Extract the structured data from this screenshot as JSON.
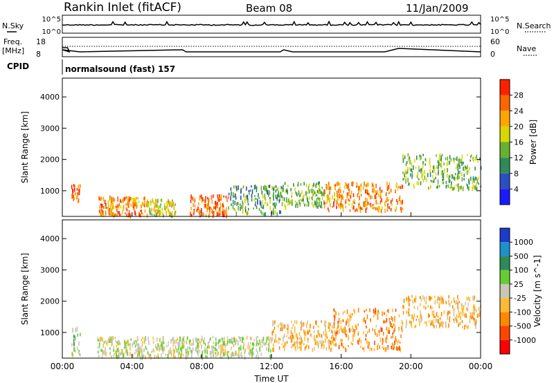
{
  "header": {
    "station": "Rankin Inlet (fitACF)",
    "beam": "Beam 08",
    "date": "11/Jan/2009"
  },
  "top_panel": {
    "left_label": "N.Sky",
    "right_label": "N.Search",
    "left_ticks": [
      "10^5",
      "10^0"
    ],
    "right_ticks": [
      "10^5",
      "10^0"
    ]
  },
  "freq_panel": {
    "left_label_1": "Freq.",
    "left_label_2": "[MHz]",
    "right_label": "Nave",
    "left_ticks": [
      "18",
      "8"
    ],
    "right_ticks": [
      "60",
      "0"
    ]
  },
  "cpid": {
    "label": "CPID",
    "value": "normalsound (fast) 157"
  },
  "colors": {
    "power": [
      "#1a1aff",
      "#2a4fbf",
      "#2e8b57",
      "#66b032",
      "#d8d800",
      "#ffa500",
      "#ff6600",
      "#ff2000"
    ],
    "velocity": [
      "#ff0000",
      "#ff4400",
      "#ff8800",
      "#ffbb33",
      "#c8c8b4",
      "#66cc33",
      "#2e8b57",
      "#1e90cc",
      "#1a3cc8"
    ]
  },
  "chart_data": [
    {
      "type": "heatmap",
      "title": "",
      "xlabel": "",
      "ylabel": "Slant Range [km]",
      "x_tick_labels": [
        "00:00",
        "04:00",
        "08:00",
        "12:00",
        "16:00",
        "20:00",
        "00:00"
      ],
      "y_ticks": [
        1000,
        2000,
        3000,
        4000
      ],
      "ylim": [
        180,
        4600
      ],
      "colorbar": {
        "label": "Power [dB]",
        "ticks": [
          4,
          8,
          12,
          16,
          20,
          24,
          28
        ],
        "range": [
          0,
          32
        ]
      },
      "regions": [
        {
          "t": [
            0.5,
            1.0
          ],
          "r": [
            700,
            1250
          ],
          "v": 26
        },
        {
          "t": [
            2.0,
            4.8
          ],
          "r": [
            250,
            850
          ],
          "v": 24
        },
        {
          "t": [
            4.8,
            6.5
          ],
          "r": [
            250,
            750
          ],
          "v": 18
        },
        {
          "t": [
            7.3,
            9.5
          ],
          "r": [
            250,
            900
          ],
          "v": 26
        },
        {
          "t": [
            9.5,
            12.5
          ],
          "r": [
            300,
            1200
          ],
          "v": 12
        },
        {
          "t": [
            12.5,
            15.0
          ],
          "r": [
            500,
            1300
          ],
          "v": 14
        },
        {
          "t": [
            15.0,
            19.5
          ],
          "r": [
            400,
            1300
          ],
          "v": 24
        },
        {
          "t": [
            19.5,
            24.0
          ],
          "r": [
            1100,
            2200
          ],
          "v": 14
        }
      ]
    },
    {
      "type": "heatmap",
      "title": "",
      "xlabel": "Time UT",
      "ylabel": "Slant Range [km]",
      "x_tick_labels": [
        "00:00",
        "04:00",
        "08:00",
        "12:00",
        "16:00",
        "20:00",
        "00:00"
      ],
      "y_ticks": [
        1000,
        2000,
        3000,
        4000
      ],
      "ylim": [
        180,
        4600
      ],
      "colorbar": {
        "label": "Velocity [m s^-1]",
        "ticks": [
          -1000,
          -500,
          -100,
          -25,
          25,
          100,
          500,
          1000
        ]
      },
      "regions": [
        {
          "t": [
            0.5,
            1.0
          ],
          "r": [
            300,
            1200
          ],
          "v": 150
        },
        {
          "t": [
            2.0,
            7.0
          ],
          "r": [
            250,
            900
          ],
          "v": 0
        },
        {
          "t": [
            7.0,
            12.0
          ],
          "r": [
            250,
            900
          ],
          "v": 50
        },
        {
          "t": [
            12.0,
            15.5
          ],
          "r": [
            500,
            1400
          ],
          "v": -300
        },
        {
          "t": [
            15.5,
            19.5
          ],
          "r": [
            500,
            1800
          ],
          "v": -500
        },
        {
          "t": [
            19.5,
            24.0
          ],
          "r": [
            1200,
            2200
          ],
          "v": -300
        }
      ]
    }
  ]
}
